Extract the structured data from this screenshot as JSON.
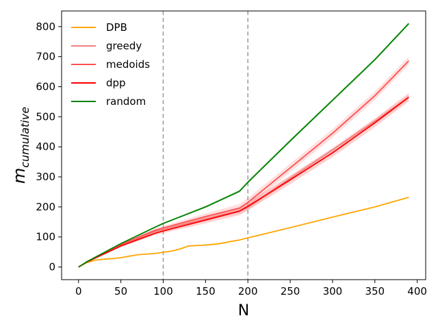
{
  "chart_data": {
    "type": "line",
    "xlabel": "N",
    "ylabel": "m",
    "ylabel_subscript": "cumulative",
    "xlim": [
      -20,
      410
    ],
    "ylim": [
      -42,
      852
    ],
    "xticks": [
      0,
      50,
      100,
      150,
      200,
      250,
      300,
      350,
      400
    ],
    "yticks": [
      0,
      100,
      200,
      300,
      400,
      500,
      600,
      700,
      800
    ],
    "grid": false,
    "legend_position": "upper-left",
    "vlines": [
      {
        "x": 100,
        "style": "dashed",
        "color": "#999999"
      },
      {
        "x": 200,
        "style": "dashed",
        "color": "#999999"
      }
    ],
    "series": [
      {
        "name": "DPB",
        "color": "#ffa500",
        "band": 0,
        "x": [
          0,
          10,
          20,
          30,
          40,
          50,
          60,
          70,
          80,
          90,
          100,
          110,
          120,
          130,
          150,
          165,
          180,
          190,
          200,
          250,
          300,
          350,
          390
        ],
        "y": [
          0,
          15,
          23,
          26,
          28,
          31,
          36,
          41,
          43,
          45,
          49,
          53,
          60,
          70,
          73,
          77,
          85,
          90,
          97,
          131,
          166,
          200,
          232
        ]
      },
      {
        "name": "greedy",
        "color": "#f08080",
        "band": 8,
        "x": [
          0,
          10,
          50,
          90,
          100,
          150,
          190,
          200,
          250,
          300,
          350,
          390
        ],
        "y": [
          0,
          17,
          72,
          118,
          125,
          160,
          186,
          198,
          295,
          390,
          485,
          565
        ]
      },
      {
        "name": "medoids",
        "color": "#ff5050",
        "band": 14,
        "x": [
          0,
          10,
          50,
          90,
          100,
          150,
          190,
          200,
          250,
          300,
          350,
          390
        ],
        "y": [
          0,
          17,
          75,
          122,
          130,
          168,
          196,
          215,
          330,
          445,
          570,
          686
        ]
      },
      {
        "name": "dpp",
        "color": "#ff0000",
        "band": 14,
        "x": [
          0,
          10,
          50,
          90,
          100,
          150,
          190,
          200,
          250,
          300,
          350,
          390
        ],
        "y": [
          0,
          17,
          70,
          112,
          120,
          156,
          186,
          202,
          290,
          380,
          480,
          565
        ]
      },
      {
        "name": "random",
        "color": "#008000",
        "band": 5,
        "x": [
          0,
          10,
          50,
          90,
          100,
          150,
          190,
          200,
          250,
          300,
          350,
          390
        ],
        "y": [
          0,
          18,
          78,
          132,
          145,
          200,
          252,
          282,
          420,
          555,
          690,
          810
        ]
      }
    ]
  }
}
